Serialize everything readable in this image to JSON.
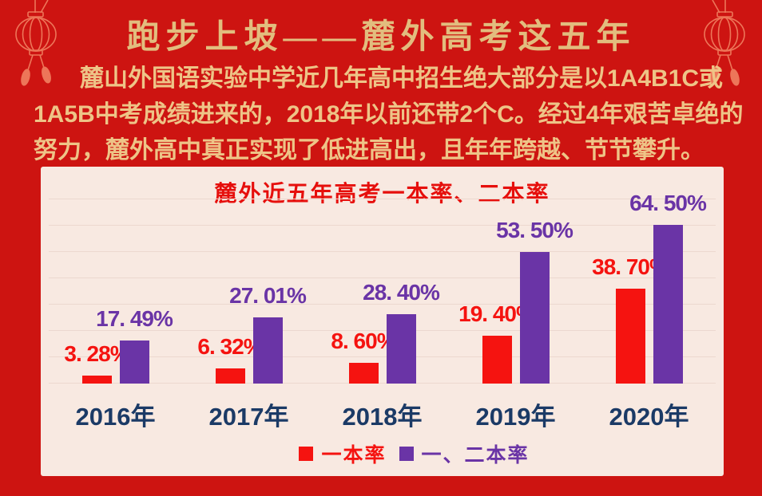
{
  "header": {
    "title": "跑步上坡——麓外高考这五年"
  },
  "intro": {
    "lines": [
      "麓山外国语实验中学近几年高中招生绝大部分是以1A4B1C或",
      "1A5B中考成绩进来的，2018年以前还带2个C。经过4年艰苦卓绝的",
      "努力，麓外高中真正实现了低进高出，且年年跨越、节节攀升。"
    ]
  },
  "decorations": {
    "left_lantern": "chinese-lantern",
    "right_lantern": "chinese-lantern"
  },
  "colors": {
    "page_background": "#cd1411",
    "panel_background": "#f8e9e1",
    "title_gold": "#e2bd7e",
    "body_gold": "#eec487",
    "chart_title_red": "#e60f0c",
    "bar_red": "#f51310",
    "bar_purple": "#6a34a6",
    "year_label_navy": "#1b3a66",
    "gridline": "#ecd8cf",
    "lantern": "#ed7659"
  },
  "chart_data": {
    "type": "bar",
    "title": "麓外近五年高考一本率、二本率",
    "categories": [
      "2016年",
      "2017年",
      "2018年",
      "2019年",
      "2020年"
    ],
    "series": [
      {
        "name": "一本率",
        "color": "#f51310",
        "values": [
          3.28,
          6.32,
          8.6,
          19.4,
          38.7
        ],
        "labels": [
          "3. 28%",
          "6. 32%",
          "8. 60%",
          "19. 40%",
          "38. 70%"
        ]
      },
      {
        "name": "一、二本率",
        "color": "#6a34a6",
        "values": [
          17.49,
          27.01,
          28.4,
          53.5,
          64.5
        ],
        "labels": [
          "17. 49%",
          "27. 01%",
          "28. 40%",
          "53. 50%",
          "64. 50%"
        ]
      }
    ],
    "ylim": [
      0,
      75
    ],
    "grid": true,
    "gridline_count": 8,
    "legend_position": "bottom",
    "xlabel": "",
    "ylabel": ""
  }
}
